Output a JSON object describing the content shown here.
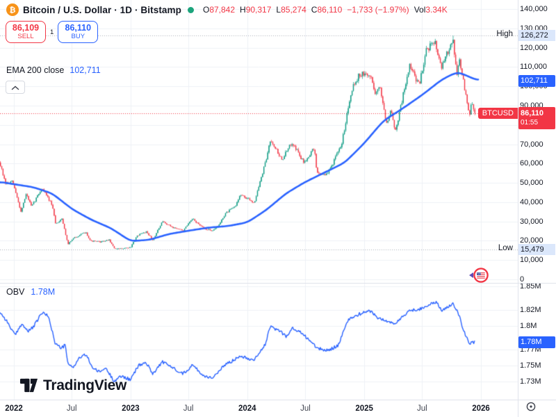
{
  "header": {
    "logo_glyph": "₿",
    "symbol_title": "Bitcoin / U.S. Dollar · 1D · Bitstamp",
    "ohlc": {
      "o_label": "O",
      "o": "87,842",
      "h_label": "H",
      "h": "90,317",
      "l_label": "L",
      "l": "85,274",
      "c_label": "C",
      "c": "86,110",
      "change": "−1,733 (−1.97%)",
      "vol_label": "Vol",
      "vol": "3.34K"
    },
    "sell_button": {
      "price": "86,109",
      "label": "SELL"
    },
    "buy_button": {
      "price": "86,110",
      "label": "BUY"
    },
    "spread": "1",
    "ema_row": {
      "label": "EMA 200 close",
      "value": "102,711"
    }
  },
  "labels": {
    "high_word": "High",
    "high_value": "126,272",
    "low_word": "Low",
    "low_value": "15,479",
    "ema_badge": "102,711",
    "price_badge_symbol": "BTCUSD",
    "price_badge_value": "86,110",
    "price_badge_countdown": "01:55"
  },
  "obv_pane": {
    "label": "OBV",
    "value": "1.78M",
    "badge": "1.78M"
  },
  "footer": {
    "logo_text": "TradingView"
  },
  "icons": {
    "bitcoin-logo": "bitcoin-b",
    "market-status": "green-dot",
    "collapse": "chevron-up",
    "event-marker": "us-flag-in-red-ring",
    "event-arrow": "left-purple-arrow",
    "axis-settings": "circle-dot"
  },
  "colors": {
    "up": "#089981",
    "down": "#f23645",
    "accent_blue": "#2962ff",
    "grid": "#eef1f6",
    "dotted_gray": "#a9adba",
    "axis_text": "#131722",
    "pale_blue_bg": "#dbe7fb",
    "orange": "#f7931a",
    "status_green": "#1ca47c"
  },
  "chart_data": {
    "type": "candlestick",
    "title": "Bitcoin / U.S. Dollar",
    "interval": "1D",
    "exchange": "Bitstamp",
    "legend_position": "top-left",
    "grid": true,
    "price_axis": {
      "min": 0,
      "max": 140000,
      "ticks": [
        {
          "value": 140000,
          "label": "140,000"
        },
        {
          "value": 130000,
          "label": "130,000"
        },
        {
          "value": 120000,
          "label": "120,000"
        },
        {
          "value": 110000,
          "label": "110,000"
        },
        {
          "value": 100000,
          "label": "100,000"
        },
        {
          "value": 90000,
          "label": "90,000"
        },
        {
          "value": 80000,
          "label": "80,000"
        },
        {
          "value": 70000,
          "label": "70,000"
        },
        {
          "value": 60000,
          "label": "60,000"
        },
        {
          "value": 50000,
          "label": "50,000"
        },
        {
          "value": 40000,
          "label": "40,000"
        },
        {
          "value": 30000,
          "label": "30,000"
        },
        {
          "value": 20000,
          "label": "20,000"
        },
        {
          "value": 10000,
          "label": "10,000"
        },
        {
          "value": 0,
          "label": "0"
        }
      ]
    },
    "obv_axis": {
      "ticks": [
        {
          "value": 1.85,
          "label": "1.85M"
        },
        {
          "value": 1.82,
          "label": "1.82M"
        },
        {
          "value": 1.8,
          "label": "1.8M"
        },
        {
          "value": 1.77,
          "label": "1.77M"
        },
        {
          "value": 1.75,
          "label": "1.75M"
        },
        {
          "value": 1.73,
          "label": "1.73M"
        }
      ]
    },
    "x_axis": {
      "labels": [
        {
          "label": "2022",
          "date": "2022-01-01",
          "major": true
        },
        {
          "label": "Jul",
          "date": "2022-07-01",
          "major": false
        },
        {
          "label": "2023",
          "date": "2023-01-01",
          "major": true
        },
        {
          "label": "Jul",
          "date": "2023-07-01",
          "major": false
        },
        {
          "label": "2024",
          "date": "2024-01-01",
          "major": true
        },
        {
          "label": "Jul",
          "date": "2024-07-01",
          "major": false
        },
        {
          "label": "2025",
          "date": "2025-01-01",
          "major": true
        },
        {
          "label": "Jul",
          "date": "2025-07-01",
          "major": false
        },
        {
          "label": "2026",
          "date": "2026-01-01",
          "major": true
        }
      ]
    },
    "levels": {
      "all_time_high": 126272,
      "high_date": "2025-10-05",
      "low": 15479,
      "low_date": "2022-11-21",
      "last_price": 86110,
      "ema_last": 102711,
      "obv_last": 1.78
    },
    "series": [
      {
        "name": "BTCUSD close path",
        "type": "candlestick-keypoints",
        "keypoints": [
          [
            "2021-11-18",
            60500
          ],
          [
            "2021-12-05",
            49500
          ],
          [
            "2021-12-28",
            50500
          ],
          [
            "2022-01-23",
            35200
          ],
          [
            "2022-02-09",
            44400
          ],
          [
            "2022-02-25",
            37500
          ],
          [
            "2022-03-30",
            47500
          ],
          [
            "2022-04-30",
            38600
          ],
          [
            "2022-05-12",
            28500
          ],
          [
            "2022-05-31",
            31700
          ],
          [
            "2022-06-19",
            18300
          ],
          [
            "2022-07-09",
            21600
          ],
          [
            "2022-08-14",
            24400
          ],
          [
            "2022-08-29",
            19900
          ],
          [
            "2022-10-01",
            19400
          ],
          [
            "2022-10-26",
            20500
          ],
          [
            "2022-11-10",
            16200
          ],
          [
            "2022-11-21",
            15760
          ],
          [
            "2023-01-01",
            16550
          ],
          [
            "2023-01-22",
            22700
          ],
          [
            "2023-02-20",
            24800
          ],
          [
            "2023-03-11",
            20300
          ],
          [
            "2023-04-11",
            29900
          ],
          [
            "2023-05-12",
            27000
          ],
          [
            "2023-06-15",
            25300
          ],
          [
            "2023-07-14",
            31300
          ],
          [
            "2023-08-18",
            26300
          ],
          [
            "2023-09-12",
            25300
          ],
          [
            "2023-10-02",
            27500
          ],
          [
            "2023-10-25",
            34200
          ],
          [
            "2023-11-25",
            37800
          ],
          [
            "2023-12-09",
            43900
          ],
          [
            "2024-01-23",
            39800
          ],
          [
            "2024-02-28",
            61000
          ],
          [
            "2024-03-14",
            73000
          ],
          [
            "2024-04-18",
            61800
          ],
          [
            "2024-05-21",
            71200
          ],
          [
            "2024-06-25",
            60500
          ],
          [
            "2024-07-29",
            68000
          ],
          [
            "2024-08-06",
            55000
          ],
          [
            "2024-09-07",
            54300
          ],
          [
            "2024-10-21",
            69000
          ],
          [
            "2024-11-22",
            98500
          ],
          [
            "2024-12-17",
            106200
          ],
          [
            "2025-01-21",
            105500
          ],
          [
            "2025-02-03",
            97000
          ],
          [
            "2025-02-21",
            98800
          ],
          [
            "2025-03-11",
            81000
          ],
          [
            "2025-03-25",
            87800
          ],
          [
            "2025-04-09",
            76800
          ],
          [
            "2025-05-22",
            110800
          ],
          [
            "2025-06-22",
            100500
          ],
          [
            "2025-07-14",
            119500
          ],
          [
            "2025-08-13",
            122500
          ],
          [
            "2025-08-31",
            108800
          ],
          [
            "2025-10-05",
            125500
          ],
          [
            "2025-10-17",
            105500
          ],
          [
            "2025-10-26",
            114000
          ],
          [
            "2025-11-10",
            99500
          ],
          [
            "2025-11-20",
            90500
          ],
          [
            "2025-11-27",
            84800
          ],
          [
            "2025-12-03",
            91500
          ],
          [
            "2025-12-12",
            86110
          ]
        ]
      },
      {
        "name": "EMA 200",
        "type": "line",
        "color": "#2962ff",
        "keypoints": [
          [
            "2021-11-18",
            50500
          ],
          [
            "2022-01-01",
            49300
          ],
          [
            "2022-03-01",
            47800
          ],
          [
            "2022-05-01",
            44500
          ],
          [
            "2022-07-01",
            36500
          ],
          [
            "2022-09-01",
            30800
          ],
          [
            "2022-11-01",
            26500
          ],
          [
            "2023-01-01",
            19800
          ],
          [
            "2023-03-01",
            20500
          ],
          [
            "2023-05-01",
            23500
          ],
          [
            "2023-07-01",
            25200
          ],
          [
            "2023-09-01",
            26800
          ],
          [
            "2023-11-01",
            27600
          ],
          [
            "2024-01-01",
            29500
          ],
          [
            "2024-03-01",
            36000
          ],
          [
            "2024-05-01",
            44500
          ],
          [
            "2024-07-01",
            50500
          ],
          [
            "2024-09-01",
            55500
          ],
          [
            "2024-11-01",
            60500
          ],
          [
            "2025-01-01",
            70500
          ],
          [
            "2025-03-01",
            82000
          ],
          [
            "2025-05-01",
            88500
          ],
          [
            "2025-07-01",
            95500
          ],
          [
            "2025-09-01",
            103500
          ],
          [
            "2025-10-20",
            107500
          ],
          [
            "2025-12-26",
            102711
          ]
        ]
      },
      {
        "name": "OBV",
        "type": "line",
        "color": "#2962ff",
        "keypoints": [
          [
            "2021-11-18",
            1.818
          ],
          [
            "2021-12-10",
            1.806
          ],
          [
            "2022-01-05",
            1.788
          ],
          [
            "2022-01-25",
            1.803
          ],
          [
            "2022-02-15",
            1.793
          ],
          [
            "2022-03-05",
            1.8
          ],
          [
            "2022-03-30",
            1.817
          ],
          [
            "2022-04-20",
            1.812
          ],
          [
            "2022-05-10",
            1.778
          ],
          [
            "2022-05-30",
            1.772
          ],
          [
            "2022-06-10",
            1.776
          ],
          [
            "2022-06-20",
            1.751
          ],
          [
            "2022-07-05",
            1.748
          ],
          [
            "2022-07-25",
            1.76
          ],
          [
            "2022-08-15",
            1.764
          ],
          [
            "2022-09-05",
            1.747
          ],
          [
            "2022-09-25",
            1.742
          ],
          [
            "2022-10-15",
            1.747
          ],
          [
            "2022-11-10",
            1.731
          ],
          [
            "2022-12-05",
            1.737
          ],
          [
            "2023-01-01",
            1.732
          ],
          [
            "2023-01-25",
            1.75
          ],
          [
            "2023-02-18",
            1.754
          ],
          [
            "2023-03-12",
            1.74
          ],
          [
            "2023-04-10",
            1.755
          ],
          [
            "2023-05-15",
            1.747
          ],
          [
            "2023-06-15",
            1.74
          ],
          [
            "2023-07-14",
            1.751
          ],
          [
            "2023-08-18",
            1.737
          ],
          [
            "2023-09-12",
            1.735
          ],
          [
            "2023-10-02",
            1.741
          ],
          [
            "2023-10-25",
            1.752
          ],
          [
            "2023-11-20",
            1.757
          ],
          [
            "2023-12-09",
            1.763
          ],
          [
            "2024-01-20",
            1.757
          ],
          [
            "2024-02-26",
            1.776
          ],
          [
            "2024-03-12",
            1.799
          ],
          [
            "2024-04-12",
            1.794
          ],
          [
            "2024-05-02",
            1.787
          ],
          [
            "2024-05-22",
            1.797
          ],
          [
            "2024-06-20",
            1.791
          ],
          [
            "2024-07-12",
            1.783
          ],
          [
            "2024-08-06",
            1.772
          ],
          [
            "2024-09-08",
            1.769
          ],
          [
            "2024-10-12",
            1.776
          ],
          [
            "2024-11-12",
            1.808
          ],
          [
            "2024-12-16",
            1.815
          ],
          [
            "2025-01-20",
            1.819
          ],
          [
            "2025-02-14",
            1.81
          ],
          [
            "2025-03-12",
            1.806
          ],
          [
            "2025-04-09",
            1.803
          ],
          [
            "2025-05-20",
            1.819
          ],
          [
            "2025-06-20",
            1.821
          ],
          [
            "2025-07-18",
            1.826
          ],
          [
            "2025-08-14",
            1.83
          ],
          [
            "2025-09-03",
            1.819
          ],
          [
            "2025-10-05",
            1.829
          ],
          [
            "2025-10-20",
            1.819
          ],
          [
            "2025-11-10",
            1.792
          ],
          [
            "2025-11-25",
            1.778
          ],
          [
            "2025-12-12",
            1.78
          ]
        ]
      }
    ],
    "event_marker": {
      "country": "US",
      "kind": "economic-calendar-event"
    }
  }
}
